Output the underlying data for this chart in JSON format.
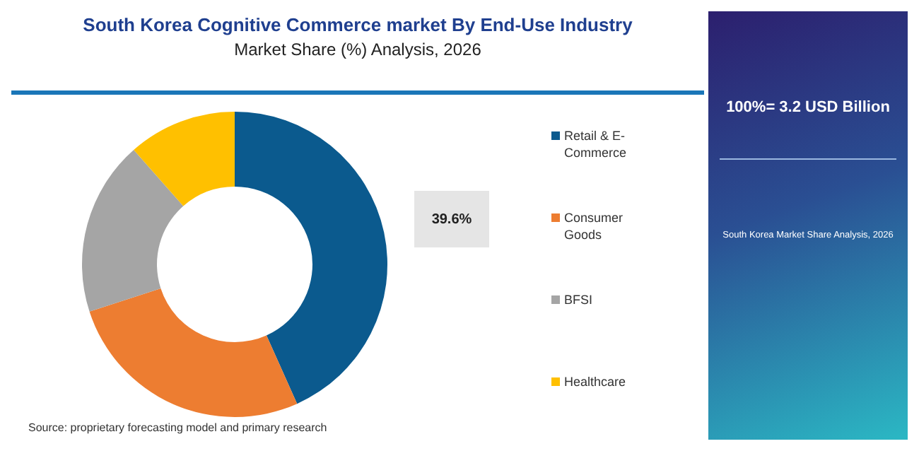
{
  "chart_data": {
    "type": "donut",
    "title": "South Korea Cognitive Commerce market By End-Use Industry",
    "subtitle": "Market Share (%) Analysis, 2026",
    "categories": [
      "Retail & E-Commerce",
      "Consumer Goods",
      "BFSI",
      "Healthcare"
    ],
    "values": [
      43.3,
      26.7,
      18.5,
      11.5
    ],
    "colors": [
      "#0b5a8e",
      "#ed7d31",
      "#a5a5a5",
      "#ffc000"
    ],
    "legend": "right",
    "annotations": [
      "39.6%",
      "100%= 3.2 USD Billion",
      "South Korea Market Share Analysis, 2026",
      "Source: proprietary forecasting model and primary research"
    ]
  }
}
